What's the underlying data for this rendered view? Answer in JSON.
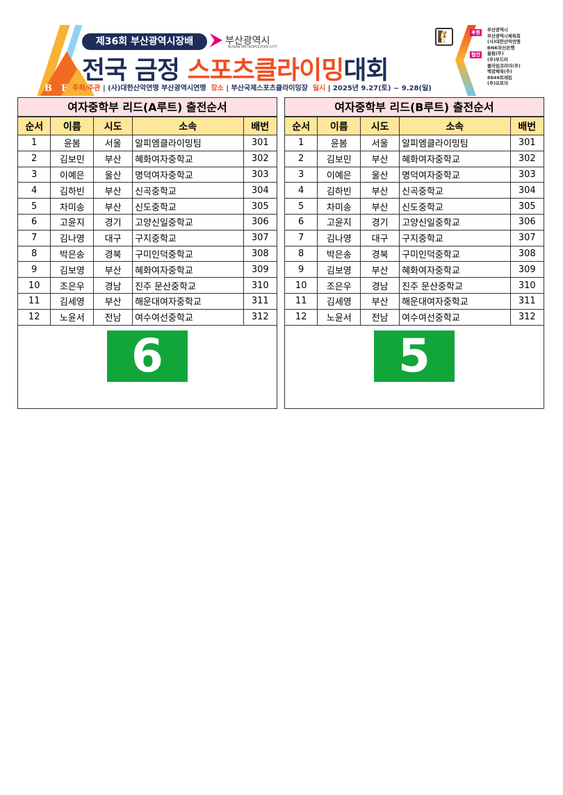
{
  "banner": {
    "logo_letters": [
      "B",
      "F"
    ],
    "edition": "제36회 부산광역시장배",
    "city_name": "부산광역시",
    "city_sub": "BUSAN METROPOLITAN CITY",
    "title_part1": "전국 금정 ",
    "title_part2": "스포츠클라이밍",
    "title_part3": "대회",
    "host_label": "주최/주관",
    "host": "| (사)대한산악연맹 부산광역시연맹",
    "venue_label": "장소",
    "venue": "| 부산국제스포츠클라이밍장",
    "date_label": "일시",
    "date": "| 2025년 9.27(토) ~ 9.28(일)",
    "support_label": "후원",
    "cosponsor_label": "협찬",
    "sponsors": [
      "부산광역시",
      "부산광역시체육회",
      "(사)대한산악연맹",
      "BNK부산은행",
      "올림(주)",
      "(주)부드러",
      "클라임코리아(주)",
      "백양체육(주)",
      "8848트레킹",
      "(주)오르자"
    ],
    "colors": {
      "navy": "#1e2d5a",
      "orange": "#f04e23",
      "magenta": "#e4007f"
    }
  },
  "columns": [
    "순서",
    "이름",
    "시도",
    "소속",
    "배번"
  ],
  "tables": [
    {
      "title": "여자중학부 리드(A루트) 출전순서",
      "route_number": "6",
      "rows": [
        [
          "1",
          "윤봄",
          "서울",
          "알피엠클라이밍팀",
          "301"
        ],
        [
          "2",
          "김보민",
          "부산",
          "혜화여자중학교",
          "302"
        ],
        [
          "3",
          "이예은",
          "울산",
          "명덕여자중학교",
          "303"
        ],
        [
          "4",
          "김하빈",
          "부산",
          "신곡중학교",
          "304"
        ],
        [
          "5",
          "차미송",
          "부산",
          "신도중학교",
          "305"
        ],
        [
          "6",
          "고윤지",
          "경기",
          "고양신일중학교",
          "306"
        ],
        [
          "7",
          "김나영",
          "대구",
          "구지중학교",
          "307"
        ],
        [
          "8",
          "박은송",
          "경북",
          "구미인덕중학교",
          "308"
        ],
        [
          "9",
          "김보영",
          "부산",
          "혜화여자중학교",
          "309"
        ],
        [
          "10",
          "조은우",
          "경남",
          "진주 문산중학교",
          "310"
        ],
        [
          "11",
          "김세영",
          "부산",
          "해운대여자중학교",
          "311"
        ],
        [
          "12",
          "노윤서",
          "전남",
          "여수여선중학교",
          "312"
        ]
      ]
    },
    {
      "title": "여자중학부 리드(B루트) 출전순서",
      "route_number": "5",
      "rows": [
        [
          "1",
          "윤봄",
          "서울",
          "알피엠클라이밍팀",
          "301"
        ],
        [
          "2",
          "김보민",
          "부산",
          "혜화여자중학교",
          "302"
        ],
        [
          "3",
          "이예은",
          "울산",
          "명덕여자중학교",
          "303"
        ],
        [
          "4",
          "김하빈",
          "부산",
          "신곡중학교",
          "304"
        ],
        [
          "5",
          "차미송",
          "부산",
          "신도중학교",
          "305"
        ],
        [
          "6",
          "고윤지",
          "경기",
          "고양신일중학교",
          "306"
        ],
        [
          "7",
          "김나영",
          "대구",
          "구지중학교",
          "307"
        ],
        [
          "8",
          "박은송",
          "경북",
          "구미인덕중학교",
          "308"
        ],
        [
          "9",
          "김보영",
          "부산",
          "혜화여자중학교",
          "309"
        ],
        [
          "10",
          "조은우",
          "경남",
          "진주 문산중학교",
          "310"
        ],
        [
          "11",
          "김세영",
          "부산",
          "해운대여자중학교",
          "311"
        ],
        [
          "12",
          "노윤서",
          "전남",
          "여수여선중학교",
          "312"
        ]
      ]
    }
  ]
}
